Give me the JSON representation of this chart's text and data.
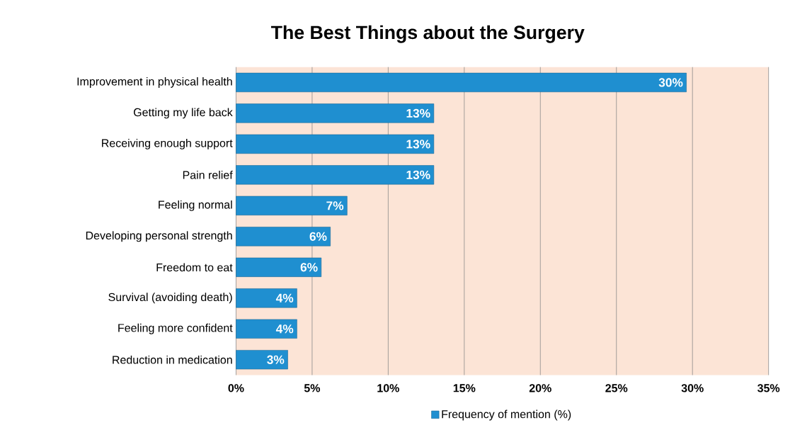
{
  "chart_data": {
    "type": "bar",
    "orientation": "horizontal",
    "title": "The Best Things about the Surgery",
    "categories": [
      "Improvement in physical health",
      "Getting my life back",
      "Receiving enough support",
      "Pain relief",
      "Feeling normal",
      "Developing personal strength",
      "Freedom to eat",
      "Survival (avoiding death)",
      "Feeling more confident",
      "Reduction in medication"
    ],
    "series": [
      {
        "name": "Frequency of mention (%)",
        "color": "#1f8fd0",
        "values": [
          29.6,
          13.0,
          13.0,
          13.0,
          7.3,
          6.2,
          5.6,
          4.0,
          4.0,
          3.4
        ],
        "value_labels": [
          "30%",
          "13%",
          "13%",
          "13%",
          "7%",
          "6%",
          "6%",
          "4%",
          "4%",
          "3%"
        ]
      }
    ],
    "xlim": [
      0,
      35
    ],
    "xticks": [
      {
        "value": 0,
        "label": "0%"
      },
      {
        "value": 5,
        "label": "5%"
      },
      {
        "value": 10,
        "label": "10%"
      },
      {
        "value": 15,
        "label": "15%"
      },
      {
        "value": 20,
        "label": "20%"
      },
      {
        "value": 25,
        "label": "25%"
      },
      {
        "value": 30,
        "label": "30%"
      },
      {
        "value": 35,
        "label": "35%"
      }
    ],
    "grid": "x",
    "legend": "bottom"
  }
}
